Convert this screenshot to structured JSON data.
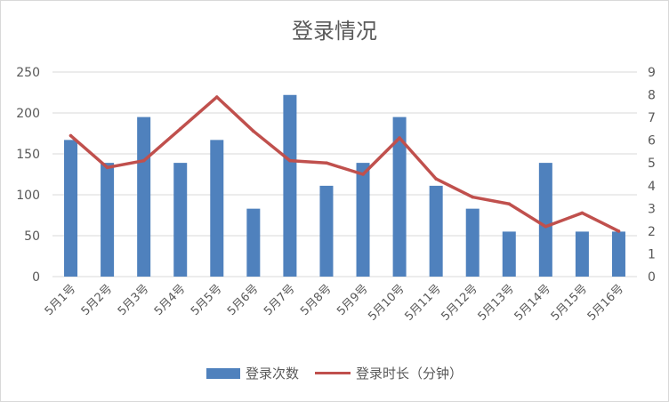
{
  "chart_data": {
    "type": "bar+line",
    "title": "登录情况",
    "categories": [
      "5月1号",
      "5月2号",
      "5月3号",
      "5月4号",
      "5月5号",
      "5月6号",
      "5月7号",
      "5月8号",
      "5月9号",
      "5月10号",
      "5月11号",
      "5月12号",
      "5月13号",
      "5月14号",
      "5月15号",
      "5月16号"
    ],
    "series": [
      {
        "name": "登录次数",
        "type": "bar",
        "axis": "left",
        "color": "#4f81bd",
        "values": [
          167,
          139,
          195,
          139,
          167,
          83,
          222,
          111,
          139,
          195,
          111,
          83,
          55,
          139,
          55,
          55
        ]
      },
      {
        "name": "登录时长（分钟）",
        "type": "line",
        "axis": "right",
        "color": "#c0504d",
        "values": [
          6.2,
          4.8,
          5.1,
          6.5,
          7.9,
          6.4,
          5.1,
          5.0,
          4.5,
          6.1,
          4.3,
          3.5,
          3.2,
          2.2,
          2.8,
          2.0
        ]
      }
    ],
    "y_left": {
      "min": 0,
      "max": 250,
      "ticks": [
        0,
        50,
        100,
        150,
        200,
        250
      ]
    },
    "y_right": {
      "min": 0,
      "max": 9,
      "ticks": [
        0,
        1,
        2,
        3,
        4,
        5,
        6,
        7,
        8,
        9
      ]
    },
    "grid": true,
    "legend_position": "bottom"
  }
}
